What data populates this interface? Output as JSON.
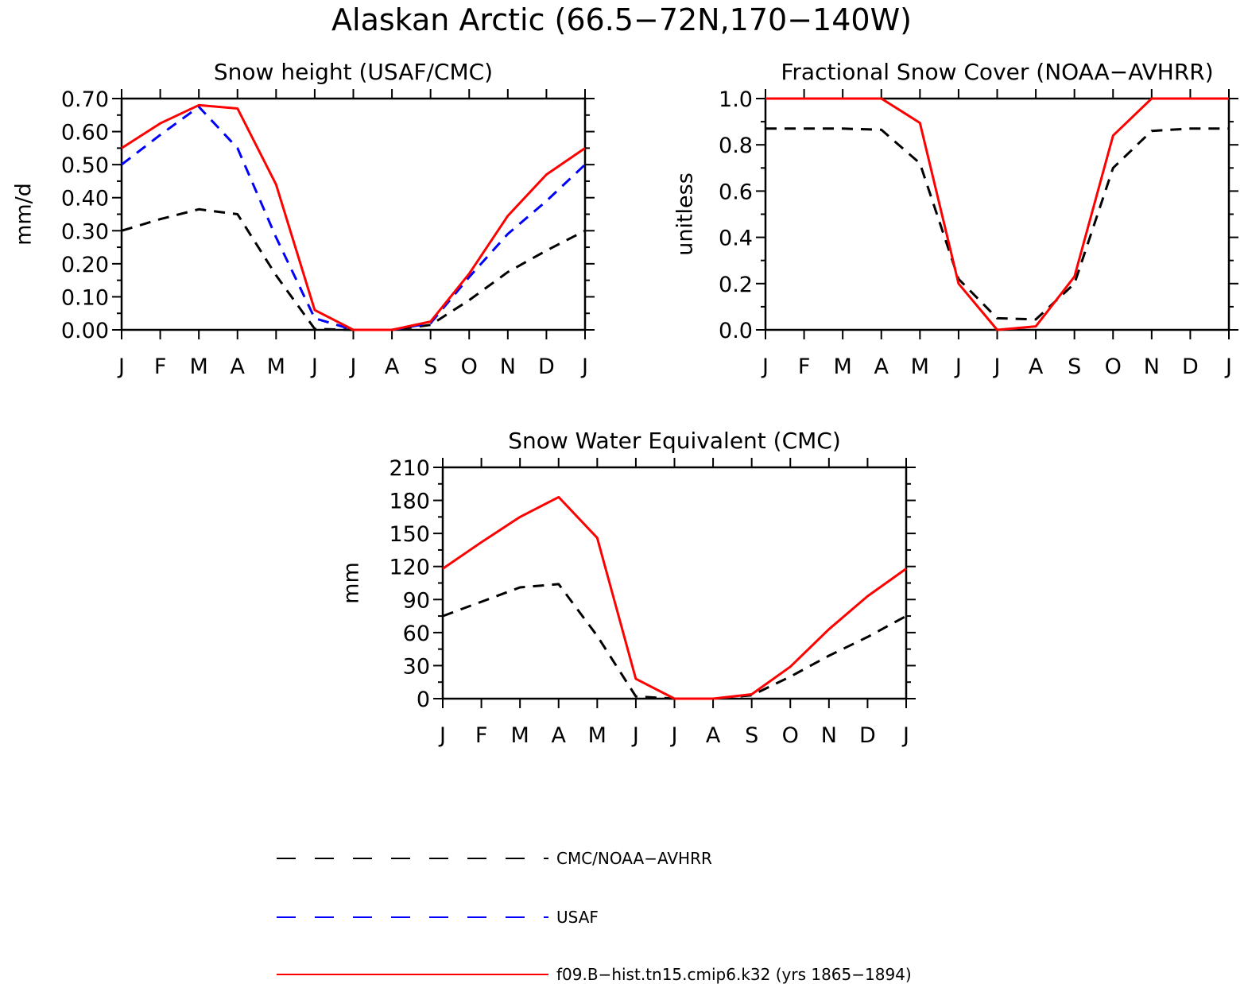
{
  "figure": {
    "title": "Alaskan Arctic (66.5−72N,170−140W)"
  },
  "legend": [
    {
      "label": "CMC/NOAA−AVHRR",
      "color": "#000000",
      "dash": "dashed"
    },
    {
      "label": "USAF",
      "color": "#0000ff",
      "dash": "dashed"
    },
    {
      "label": "f09.B−hist.tn15.cmip6.k32 (yrs 1865−1894)",
      "color": "#ff0000",
      "dash": "solid"
    }
  ],
  "chart_data": [
    {
      "type": "line",
      "title": "Snow height (USAF/CMC)",
      "ylabel": "mm/d",
      "xlabel": "",
      "x": [
        "J",
        "F",
        "M",
        "A",
        "M",
        "J",
        "J",
        "A",
        "S",
        "O",
        "N",
        "D",
        "J"
      ],
      "ylim": [
        0,
        0.7
      ],
      "yticks": [
        "0.00",
        "0.10",
        "0.20",
        "0.30",
        "0.40",
        "0.50",
        "0.60",
        "0.70"
      ],
      "yticks_values": [
        0,
        0.1,
        0.2,
        0.3,
        0.4,
        0.5,
        0.6,
        0.7
      ],
      "series": [
        {
          "name": "CMC/NOAA−AVHRR",
          "color": "#000000",
          "dash": "dashed",
          "values": [
            0.3,
            0.335,
            0.365,
            0.35,
            0.165,
            0.003,
            0.0,
            0.0,
            0.015,
            0.09,
            0.175,
            0.24,
            0.3
          ]
        },
        {
          "name": "USAF",
          "color": "#0000ff",
          "dash": "dashed",
          "values": [
            0.5,
            0.59,
            0.675,
            0.55,
            0.28,
            0.035,
            0.0,
            0.0,
            0.02,
            0.16,
            0.29,
            0.39,
            0.5
          ]
        },
        {
          "name": "f09.B−hist.tn15.cmip6.k32 (yrs 1865−1894)",
          "color": "#ff0000",
          "dash": "solid",
          "values": [
            0.55,
            0.625,
            0.68,
            0.67,
            0.44,
            0.06,
            0.0,
            0.0,
            0.025,
            0.17,
            0.345,
            0.47,
            0.55
          ]
        }
      ]
    },
    {
      "type": "line",
      "title": "Fractional Snow Cover (NOAA−AVHRR)",
      "ylabel": "unitless",
      "xlabel": "",
      "x": [
        "J",
        "F",
        "M",
        "A",
        "M",
        "J",
        "J",
        "A",
        "S",
        "O",
        "N",
        "D",
        "J"
      ],
      "ylim": [
        0,
        1.0
      ],
      "yticks": [
        "0.0",
        "0.2",
        "0.4",
        "0.6",
        "0.8",
        "1.0"
      ],
      "yticks_values": [
        0,
        0.2,
        0.4,
        0.6,
        0.8,
        1.0
      ],
      "series": [
        {
          "name": "CMC/NOAA−AVHRR",
          "color": "#000000",
          "dash": "dashed",
          "values": [
            0.87,
            0.87,
            0.87,
            0.865,
            0.72,
            0.22,
            0.05,
            0.045,
            0.2,
            0.7,
            0.86,
            0.87,
            0.87
          ]
        },
        {
          "name": "f09.B−hist.tn15.cmip6.k32 (yrs 1865−1894)",
          "color": "#ff0000",
          "dash": "solid",
          "values": [
            1.0,
            1.0,
            1.0,
            1.0,
            0.895,
            0.2,
            0.0,
            0.015,
            0.23,
            0.84,
            1.0,
            1.0,
            1.0
          ]
        }
      ]
    },
    {
      "type": "line",
      "title": "Snow Water Equivalent (CMC)",
      "ylabel": "mm",
      "xlabel": "",
      "x": [
        "J",
        "F",
        "M",
        "A",
        "M",
        "J",
        "J",
        "A",
        "S",
        "O",
        "N",
        "D",
        "J"
      ],
      "ylim": [
        0,
        210
      ],
      "yticks": [
        "0",
        "30",
        "60",
        "90",
        "120",
        "150",
        "180",
        "210"
      ],
      "yticks_values": [
        0,
        30,
        60,
        90,
        120,
        150,
        180,
        210
      ],
      "series": [
        {
          "name": "CMC/NOAA−AVHRR",
          "color": "#000000",
          "dash": "dashed",
          "values": [
            75,
            88,
            101,
            104,
            57,
            2,
            0,
            0,
            3,
            20,
            39,
            56,
            75
          ]
        },
        {
          "name": "f09.B−hist.tn15.cmip6.k32 (yrs 1865−1894)",
          "color": "#ff0000",
          "dash": "solid",
          "values": [
            118,
            142,
            165,
            183,
            146,
            18,
            0,
            0,
            4,
            29,
            63,
            93,
            118
          ]
        }
      ]
    }
  ]
}
